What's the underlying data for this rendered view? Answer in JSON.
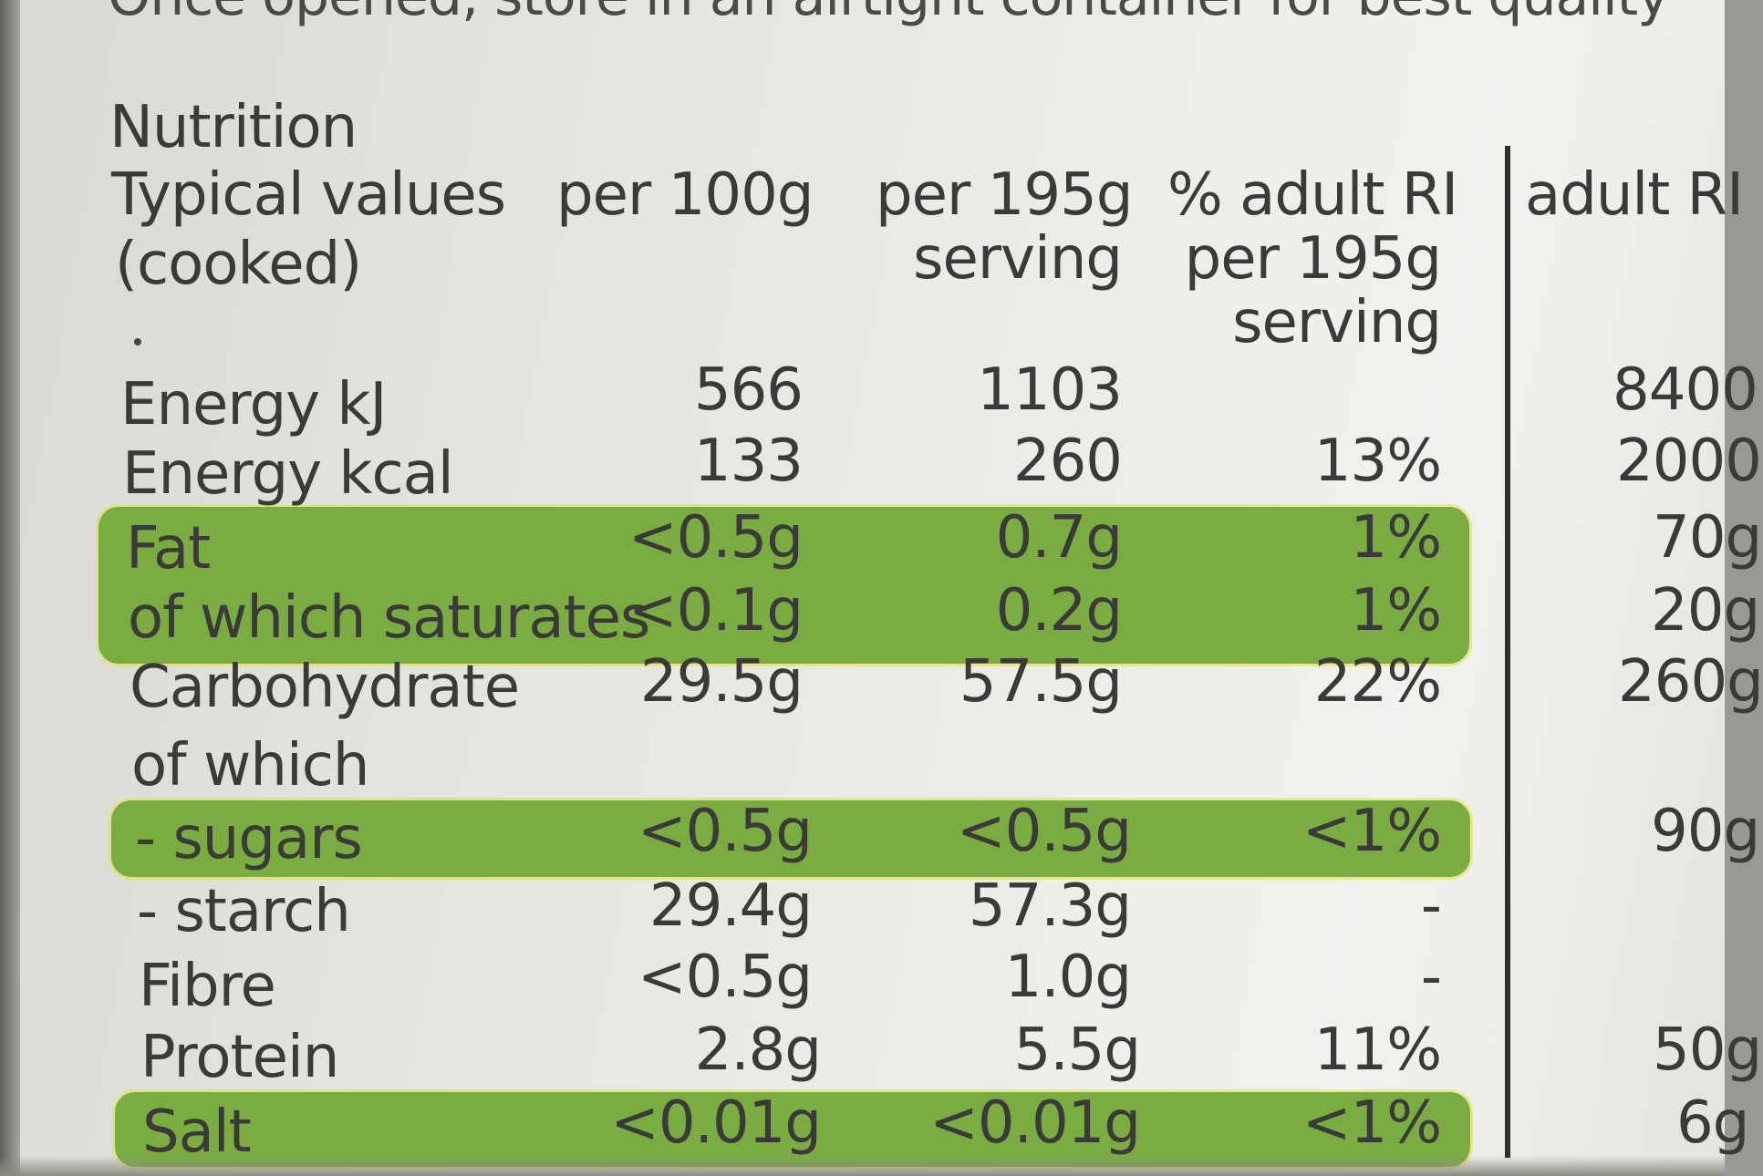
{
  "top_note": "Once opened, store in an airtight container for best quality",
  "table": {
    "title": "Nutrition",
    "headers": {
      "typical_values": "Typical values",
      "cooked": "(cooked)",
      "per_100g": "per 100g",
      "per_195g_line1": "per 195g",
      "per_195g_line2": "serving",
      "ri_line1": "% adult RI",
      "ri_line2": "per 195g",
      "ri_line3": "serving",
      "adult_ri": "adult RI"
    },
    "rows": [
      {
        "name": "Energy kJ",
        "per100": "566",
        "serving": "1103",
        "ri": "",
        "adult": "8400"
      },
      {
        "name": "Energy kcal",
        "per100": "133",
        "serving": "260",
        "ri": "13%",
        "adult": "2000"
      },
      {
        "name": "Fat",
        "per100": "<0.5g",
        "serving": "0.7g",
        "ri": "1%",
        "adult": "70g"
      },
      {
        "name": "of which saturates",
        "per100": "<0.1g",
        "serving": "0.2g",
        "ri": "1%",
        "adult": "20g"
      },
      {
        "name": "Carbohydrate",
        "per100": "29.5g",
        "serving": "57.5g",
        "ri": "22%",
        "adult": "260g"
      },
      {
        "name": "of which",
        "per100": "",
        "serving": "",
        "ri": "",
        "adult": ""
      },
      {
        "name": "- sugars",
        "per100": "<0.5g",
        "serving": "<0.5g",
        "ri": "<1%",
        "adult": "90g"
      },
      {
        "name": "- starch",
        "per100": "29.4g",
        "serving": "57.3g",
        "ri": "-",
        "adult": ""
      },
      {
        "name": "Fibre",
        "per100": "<0.5g",
        "serving": "1.0g",
        "ri": "-",
        "adult": ""
      },
      {
        "name": "Protein",
        "per100": "2.8g",
        "serving": "5.5g",
        "ri": "11%",
        "adult": "50g"
      },
      {
        "name": "Salt",
        "per100": "<0.01g",
        "serving": "<0.01g",
        "ri": "<1%",
        "adult": "6g"
      }
    ]
  },
  "colors": {
    "highlight": "#7aac42",
    "text": "#3a3a38"
  }
}
